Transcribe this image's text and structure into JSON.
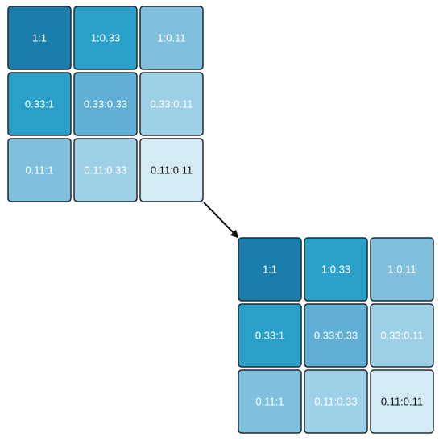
{
  "grids": [
    {
      "cells": [
        [
          "1:1",
          "1:0.33",
          "1:0.11"
        ],
        [
          "0.33:1",
          "0.33:0.33",
          "0.33:0.11"
        ],
        [
          "0.11:1",
          "0.11:0.33",
          "0.11:0.11"
        ]
      ]
    },
    {
      "cells": [
        [
          "1:1",
          "1:0.33",
          "1:0.11"
        ],
        [
          "0.33:1",
          "0.33:0.33",
          "0.33:0.11"
        ],
        [
          "0.11:1",
          "0.11:0.33",
          "0.11:0.11"
        ]
      ]
    }
  ]
}
